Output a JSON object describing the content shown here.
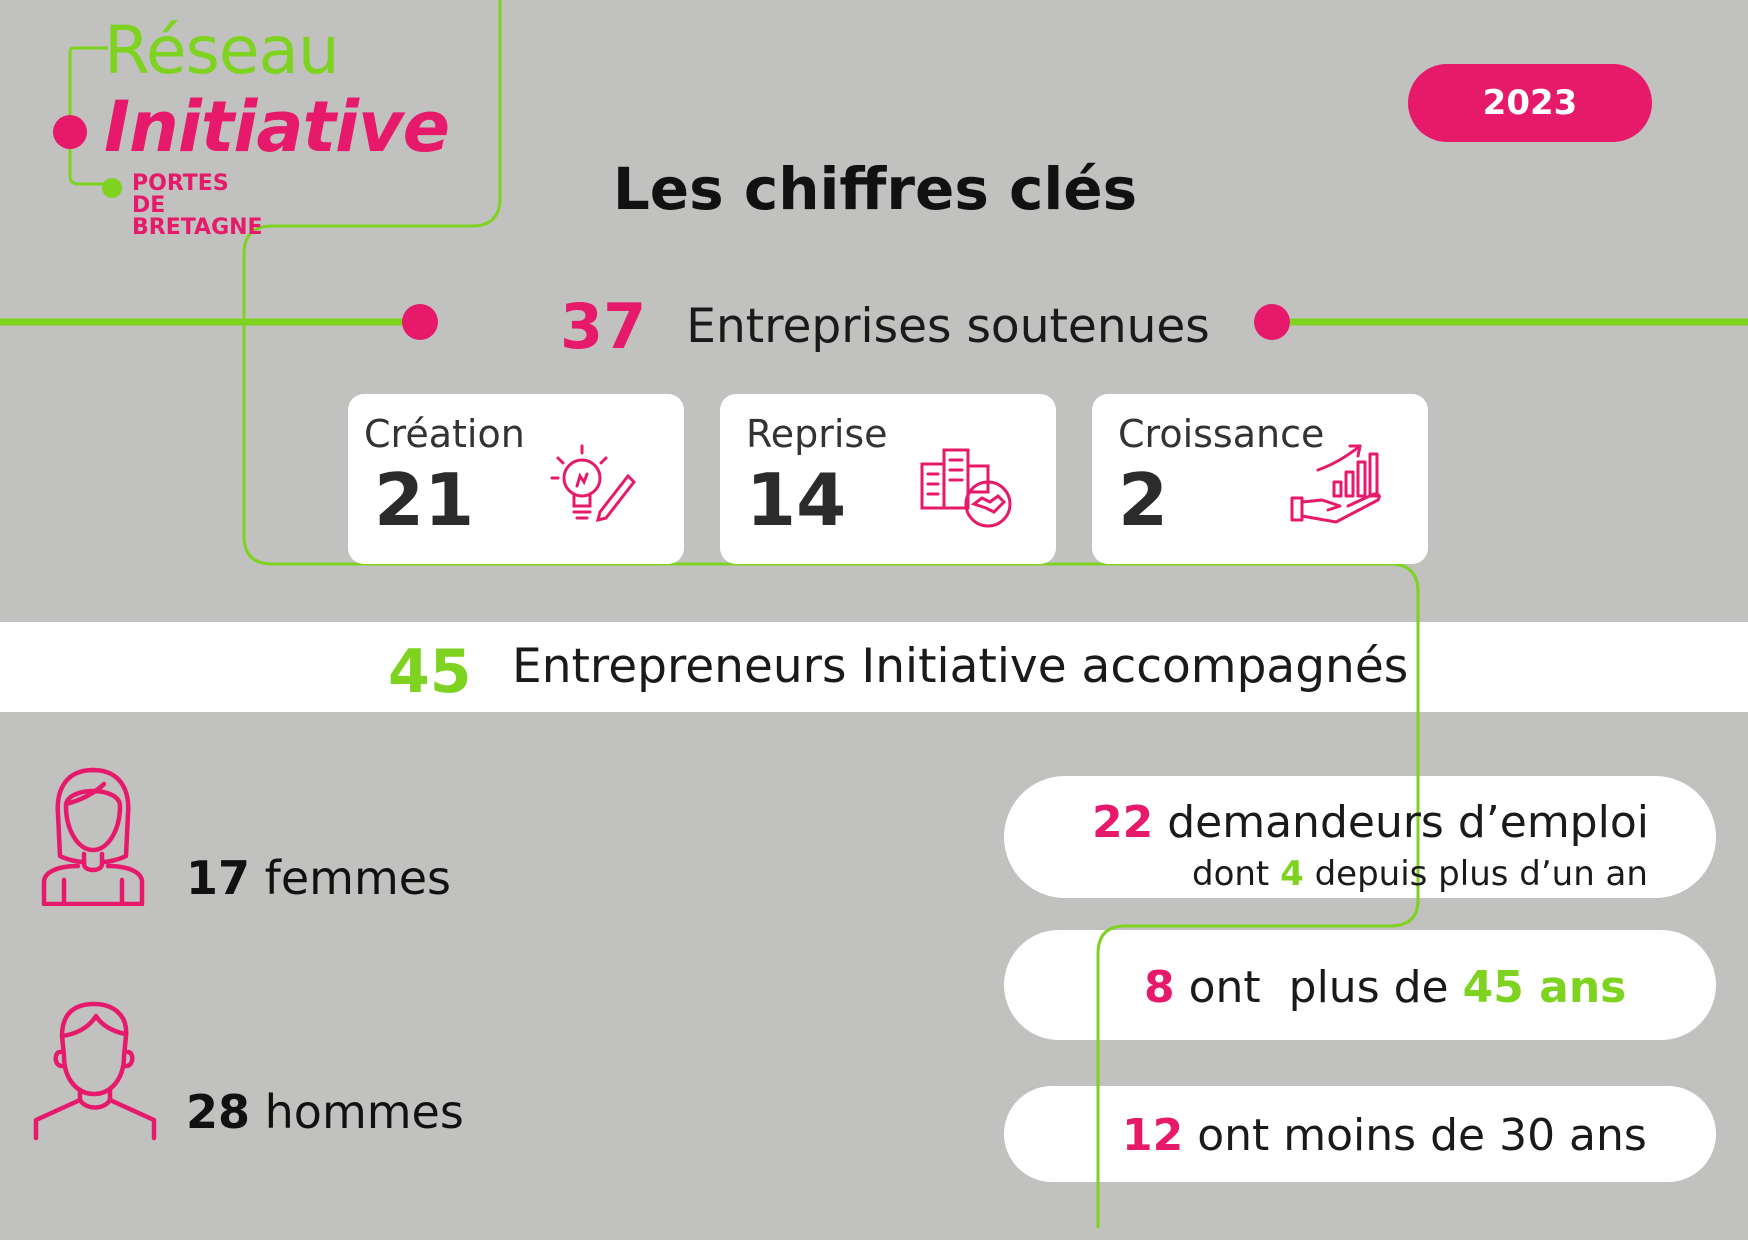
{
  "logo": {
    "line1": "Réseau",
    "line2": "Initiative",
    "line3": "PORTES DE BRETAGNE"
  },
  "year": "2023",
  "title": "Les chiffres clés",
  "companies": {
    "count": "37",
    "label": "Entreprises soutenues"
  },
  "cards": [
    {
      "label": "Création",
      "value": "21",
      "icon": "lightbulb-icon"
    },
    {
      "label": "Reprise",
      "value": "14",
      "icon": "buildings-handshake-icon"
    },
    {
      "label": "Croissance",
      "value": "2",
      "icon": "growth-hand-icon"
    }
  ],
  "entrepreneurs": {
    "count": "45",
    "label": "Entrepreneurs Initiative accompagnés"
  },
  "gender": {
    "women": {
      "count": "17",
      "label": "femmes",
      "icon": "woman-icon"
    },
    "men": {
      "count": "28",
      "label": "hommes",
      "icon": "man-icon"
    }
  },
  "facts": {
    "jobseekers": {
      "count": "22",
      "label": "demandeurs d’emploi",
      "sub_prefix": "dont",
      "sub_count": "4",
      "sub_suffix": "depuis plus d’un an"
    },
    "over45": {
      "count": "8",
      "label": "ont  plus de",
      "age": "45 ans"
    },
    "under30": {
      "count": "12",
      "label": "ont moins de 30 ans"
    }
  },
  "colors": {
    "pink": "#e6196a",
    "green": "#7ed321",
    "background": "#c1c1bf"
  }
}
